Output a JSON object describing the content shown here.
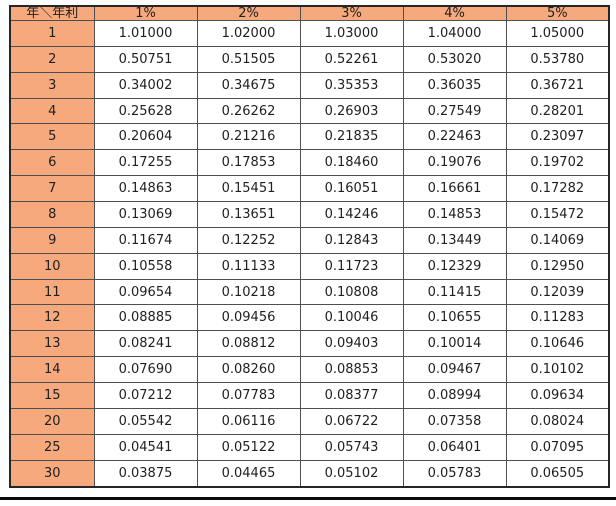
{
  "colors": {
    "header_fill": "#F5A97C",
    "row_header_fill": "#F5A97C",
    "grid_line": "#4f4f4f",
    "outer_border": "#262626",
    "text": "#1f1f1f",
    "page_background": "#ffffff",
    "bottom_rule": "#0a0a0a"
  },
  "chart_data": {
    "type": "table",
    "corner_label": "年＼年利",
    "column_headers": [
      "1%",
      "2%",
      "3%",
      "4%",
      "5%"
    ],
    "row_header_values": [
      "1",
      "2",
      "3",
      "4",
      "5",
      "6",
      "7",
      "8",
      "9",
      "10",
      "11",
      "12",
      "13",
      "14",
      "15",
      "20",
      "25",
      "30"
    ],
    "header": [
      "年＼年利",
      "1%",
      "2%",
      "3%",
      "4%",
      "5%"
    ],
    "rows": [
      [
        "1",
        "1.01000",
        "1.02000",
        "1.03000",
        "1.04000",
        "1.05000"
      ],
      [
        "2",
        "0.50751",
        "0.51505",
        "0.52261",
        "0.53020",
        "0.53780"
      ],
      [
        "3",
        "0.34002",
        "0.34675",
        "0.35353",
        "0.36035",
        "0.36721"
      ],
      [
        "4",
        "0.25628",
        "0.26262",
        "0.26903",
        "0.27549",
        "0.28201"
      ],
      [
        "5",
        "0.20604",
        "0.21216",
        "0.21835",
        "0.22463",
        "0.23097"
      ],
      [
        "6",
        "0.17255",
        "0.17853",
        "0.18460",
        "0.19076",
        "0.19702"
      ],
      [
        "7",
        "0.14863",
        "0.15451",
        "0.16051",
        "0.16661",
        "0.17282"
      ],
      [
        "8",
        "0.13069",
        "0.13651",
        "0.14246",
        "0.14853",
        "0.15472"
      ],
      [
        "9",
        "0.11674",
        "0.12252",
        "0.12843",
        "0.13449",
        "0.14069"
      ],
      [
        "10",
        "0.10558",
        "0.11133",
        "0.11723",
        "0.12329",
        "0.12950"
      ],
      [
        "11",
        "0.09654",
        "0.10218",
        "0.10808",
        "0.11415",
        "0.12039"
      ],
      [
        "12",
        "0.08885",
        "0.09456",
        "0.10046",
        "0.10655",
        "0.11283"
      ],
      [
        "13",
        "0.08241",
        "0.08812",
        "0.09403",
        "0.10014",
        "0.10646"
      ],
      [
        "14",
        "0.07690",
        "0.08260",
        "0.08853",
        "0.09467",
        "0.10102"
      ],
      [
        "15",
        "0.07212",
        "0.07783",
        "0.08377",
        "0.08994",
        "0.09634"
      ],
      [
        "20",
        "0.05542",
        "0.06116",
        "0.06722",
        "0.07358",
        "0.08024"
      ],
      [
        "25",
        "0.04541",
        "0.05122",
        "0.05743",
        "0.06401",
        "0.07095"
      ],
      [
        "30",
        "0.03875",
        "0.04465",
        "0.05102",
        "0.05783",
        "0.06505"
      ]
    ]
  }
}
